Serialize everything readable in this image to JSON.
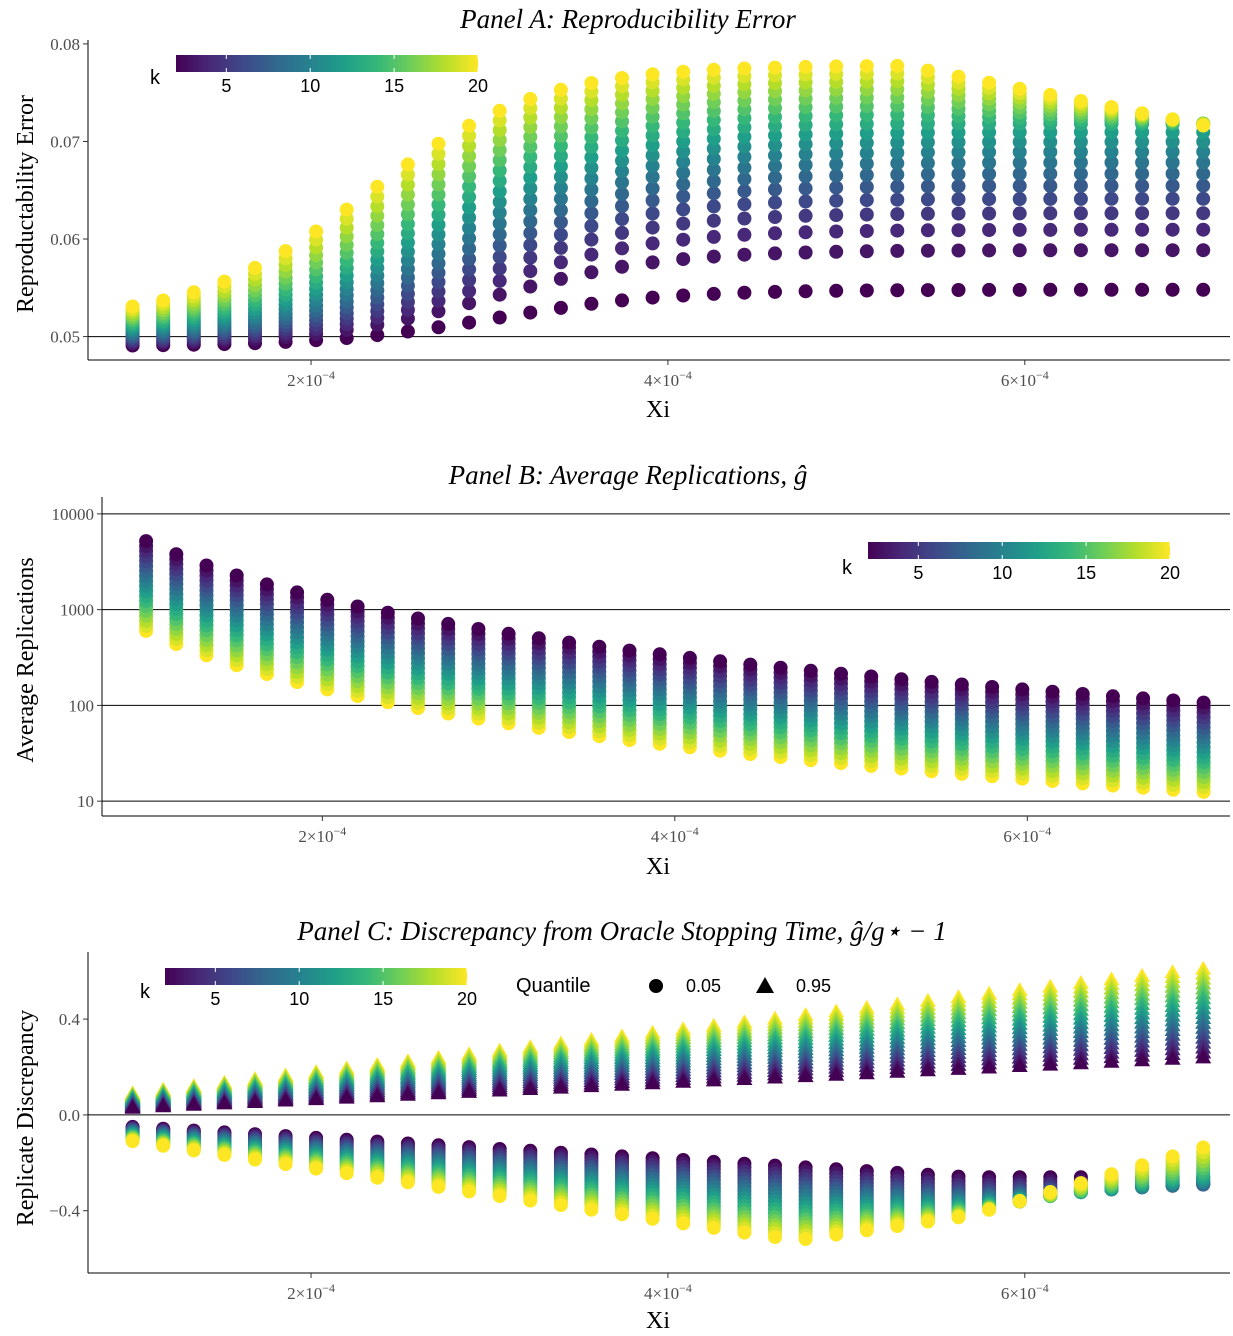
{
  "figure": {
    "colormap": [
      "#440154",
      "#482878",
      "#3e4989",
      "#31688e",
      "#26828e",
      "#1f9e89",
      "#35b779",
      "#6ece58",
      "#b5de2b",
      "#fde725"
    ]
  },
  "panels": [
    {
      "title": "Panel A: Reproducibility Error",
      "xlabel": "Xi",
      "ylabel": "Reproductability Error",
      "xticks": [
        {
          "v": 0.0002,
          "mant": "2",
          "exp": "−4"
        },
        {
          "v": 0.0004,
          "mant": "4",
          "exp": "−4"
        },
        {
          "v": 0.0006,
          "mant": "6",
          "exp": "−4"
        }
      ],
      "yticks": [
        "0.05",
        "0.06",
        "0.07",
        "0.08"
      ],
      "legend_title": "k",
      "legend_ticks": [
        "5",
        "10",
        "15",
        "20"
      ]
    },
    {
      "title": "Panel B: Average Replications, ",
      "title_math": "ĝ",
      "xlabel": "Xi",
      "ylabel": "Average Replications",
      "xticks": [
        {
          "v": 0.0002,
          "mant": "2",
          "exp": "−4"
        },
        {
          "v": 0.0004,
          "mant": "4",
          "exp": "−4"
        },
        {
          "v": 0.0006,
          "mant": "6",
          "exp": "−4"
        }
      ],
      "yticks": [
        "10",
        "100",
        "1000",
        "10000"
      ],
      "legend_title": "k",
      "legend_ticks": [
        "5",
        "10",
        "15",
        "20"
      ]
    },
    {
      "title": "Panel C: Discrepancy from Oracle Stopping Time, ",
      "title_math": "ĝ/g⋆ − 1",
      "xlabel": "Xi",
      "ylabel": "Replicate Discrepancy",
      "xticks": [
        {
          "v": 0.0002,
          "mant": "2",
          "exp": "−4"
        },
        {
          "v": 0.0004,
          "mant": "4",
          "exp": "−4"
        },
        {
          "v": 0.0006,
          "mant": "6",
          "exp": "−4"
        }
      ],
      "yticks": [
        "−0.4",
        "0.0",
        "0.4"
      ],
      "legend_title": "k",
      "legend_ticks": [
        "5",
        "10",
        "15",
        "20"
      ],
      "quantile_legend": {
        "title": "Quantile",
        "items": [
          {
            "shape": "circle",
            "label": "0.05"
          },
          {
            "shape": "triangle",
            "label": "0.95"
          }
        ]
      }
    }
  ],
  "chart_data": [
    {
      "type": "scatter",
      "title": "Panel A: Reproducibility Error",
      "xlabel": "Xi",
      "ylabel": "Reproductability Error",
      "xlim": [
        7.5e-05,
        0.000715
      ],
      "ylim": [
        0.0476,
        0.0804
      ],
      "x": {
        "start": 0.0001,
        "end": 0.0007,
        "count": 36
      },
      "color_var": "k",
      "k_range": [
        2,
        20
      ],
      "k_values": [
        2,
        3,
        4,
        5,
        6,
        7,
        8,
        9,
        10,
        11,
        12,
        13,
        14,
        15,
        16,
        17,
        18,
        19,
        20
      ],
      "series": [
        {
          "name": "2",
          "y_at_xmin": 0.049,
          "y_at_xmax": 0.057
        },
        {
          "name": "20",
          "y_at_xmin": 0.0515,
          "y_at_xmax": 0.0525,
          "y_max": 0.0778
        }
      ]
    },
    {
      "type": "scatter",
      "title": "Panel B: Average Replications",
      "xlabel": "Xi",
      "ylabel": "Average Replications",
      "y_scale": "log",
      "xlim": [
        7.5e-05,
        0.000715
      ],
      "ylim": [
        7,
        15000
      ],
      "x": {
        "start": 0.0001,
        "end": 0.0007,
        "count": 36
      },
      "color_var": "k",
      "k_range": [
        2,
        20
      ],
      "series": [
        {
          "name": "2",
          "y_at_xmin": 5200,
          "y_at_xmax": 107
        },
        {
          "name": "20",
          "y_at_xmin": 600,
          "y_at_xmax": 12.5
        }
      ]
    },
    {
      "type": "scatter",
      "title": "Panel C: Discrepancy from Oracle Stopping Time",
      "xlabel": "Xi",
      "ylabel": "Replicate Discrepancy",
      "xlim": [
        7.5e-05,
        0.000715
      ],
      "ylim": [
        -0.66,
        0.68
      ],
      "x": {
        "start": 0.0001,
        "end": 0.0007,
        "count": 36
      },
      "color_var": "k",
      "k_range": [
        2,
        20
      ],
      "quantiles": [
        "0.05",
        "0.95"
      ],
      "series": [
        {
          "name": "0.95, k=2",
          "y_at_xmin": 0.03,
          "y_at_xmax": 0.24
        },
        {
          "name": "0.95, k=20",
          "y_at_xmin": 0.09,
          "y_at_xmax": 0.61
        },
        {
          "name": "0.05, k=2",
          "y_at_xmin": -0.05,
          "y_at_xmax": -0.26
        },
        {
          "name": "0.05, k=20",
          "y_at_xmin": -0.11,
          "y_min": -0.63,
          "y_at_xmax": -0.2
        }
      ]
    }
  ]
}
